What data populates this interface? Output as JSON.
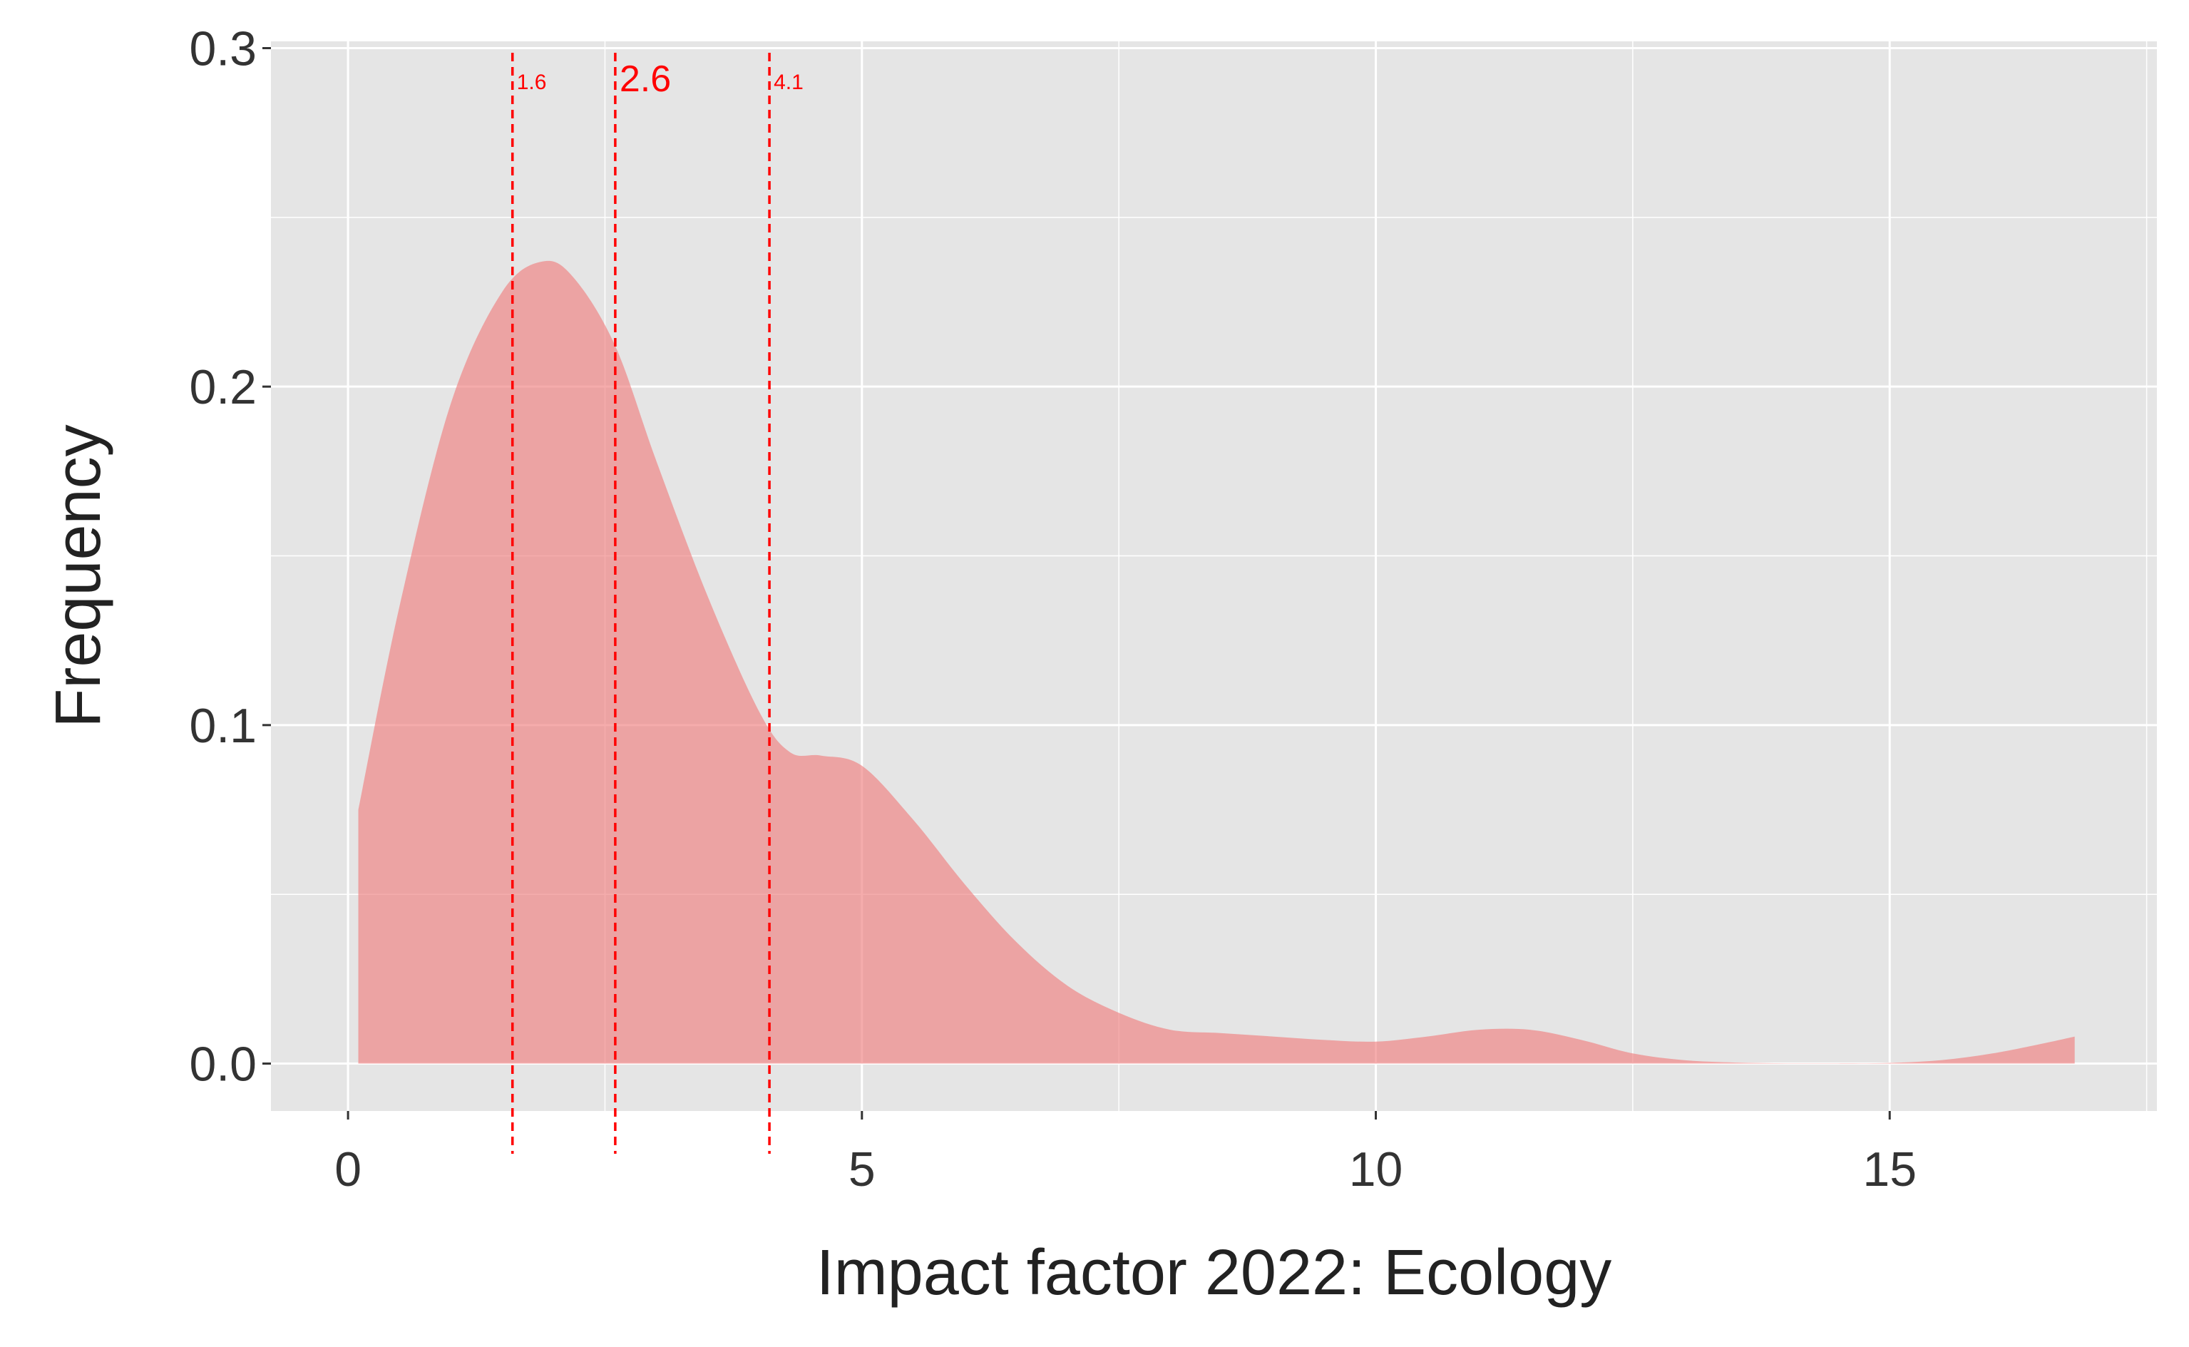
{
  "chart_data": {
    "type": "area",
    "title": "",
    "xlabel": "Impact factor 2022: Ecology",
    "ylabel": "Frequency",
    "xlim": [
      -0.75,
      17.6
    ],
    "ylim": [
      -0.014,
      0.302
    ],
    "xticks": [
      0,
      5,
      10,
      15
    ],
    "xtick_labels": [
      "0",
      "5",
      "10",
      "15"
    ],
    "yticks": [
      0,
      0.1,
      0.2,
      0.3
    ],
    "ytick_labels": [
      "0.0",
      "0.1",
      "0.2",
      "0.3"
    ],
    "grid": true,
    "background": "#e5e5e5",
    "grid_color": "#ffffff",
    "fill_color": "#f08080",
    "reference_color": "#ff0000",
    "series": [
      {
        "x": [
          0.1,
          0.5,
          1.0,
          1.5,
          1.9,
          2.2,
          2.6,
          3.0,
          3.5,
          4.0,
          4.3,
          4.6,
          5.0,
          5.5,
          6.0,
          6.5,
          7.0,
          7.5,
          8.0,
          8.5,
          9.0,
          9.5,
          10.0,
          10.5,
          11.0,
          11.5,
          12.0,
          12.5,
          13.0,
          13.5,
          14.0,
          14.5,
          15.0,
          15.5,
          16.0,
          16.5,
          16.8
        ],
        "y": [
          0.075,
          0.135,
          0.195,
          0.228,
          0.237,
          0.232,
          0.212,
          0.178,
          0.138,
          0.104,
          0.092,
          0.091,
          0.088,
          0.072,
          0.053,
          0.036,
          0.023,
          0.015,
          0.01,
          0.009,
          0.008,
          0.007,
          0.0065,
          0.008,
          0.01,
          0.01,
          0.007,
          0.003,
          0.001,
          0.0003,
          0.0001,
          0.0001,
          0.0002,
          0.001,
          0.003,
          0.006,
          0.008
        ]
      }
    ],
    "reference_lines": [
      {
        "x": 1.6,
        "label": "1.6",
        "emphasis": false
      },
      {
        "x": 2.6,
        "label": "2.6",
        "emphasis": true
      },
      {
        "x": 4.1,
        "label": "4.1",
        "emphasis": false
      }
    ]
  }
}
